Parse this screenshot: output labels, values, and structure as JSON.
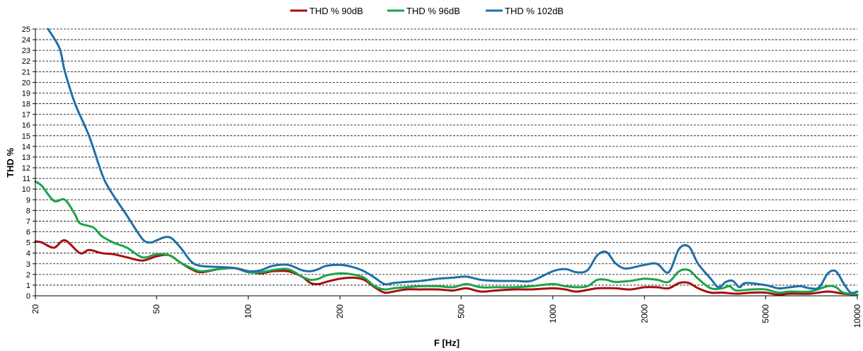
{
  "chart_data": {
    "type": "line",
    "title": "",
    "xlabel": "F [Hz]",
    "ylabel": "THD %",
    "xscale": "log",
    "xlim": [
      20,
      10000
    ],
    "ylim": [
      0,
      25
    ],
    "grid": "horizontal dashed",
    "legend_position": "top-center",
    "x_ticks": [
      20,
      50,
      100,
      200,
      500,
      1000,
      2000,
      5000,
      10000
    ],
    "y_ticks": [
      0,
      1,
      2,
      3,
      4,
      5,
      6,
      7,
      8,
      9,
      10,
      11,
      12,
      13,
      14,
      15,
      16,
      17,
      18,
      19,
      20,
      21,
      22,
      23,
      24,
      25
    ],
    "series": [
      {
        "name": "THD % 90dB",
        "color": "#a50f0f",
        "points": [
          [
            20,
            5.1
          ],
          [
            21,
            5.0
          ],
          [
            23,
            4.5
          ],
          [
            25,
            5.2
          ],
          [
            28,
            4.0
          ],
          [
            30,
            4.3
          ],
          [
            33,
            4.0
          ],
          [
            36,
            3.9
          ],
          [
            40,
            3.6
          ],
          [
            45,
            3.3
          ],
          [
            50,
            3.7
          ],
          [
            55,
            3.8
          ],
          [
            60,
            3.1
          ],
          [
            65,
            2.5
          ],
          [
            70,
            2.2
          ],
          [
            80,
            2.5
          ],
          [
            90,
            2.6
          ],
          [
            100,
            2.3
          ],
          [
            110,
            2.1
          ],
          [
            120,
            2.3
          ],
          [
            135,
            2.3
          ],
          [
            150,
            1.8
          ],
          [
            160,
            1.2
          ],
          [
            170,
            1.1
          ],
          [
            180,
            1.3
          ],
          [
            200,
            1.6
          ],
          [
            220,
            1.7
          ],
          [
            240,
            1.5
          ],
          [
            260,
            0.8
          ],
          [
            280,
            0.3
          ],
          [
            300,
            0.4
          ],
          [
            330,
            0.6
          ],
          [
            370,
            0.6
          ],
          [
            420,
            0.6
          ],
          [
            470,
            0.5
          ],
          [
            520,
            0.7
          ],
          [
            580,
            0.4
          ],
          [
            650,
            0.5
          ],
          [
            750,
            0.6
          ],
          [
            850,
            0.6
          ],
          [
            1000,
            0.7
          ],
          [
            1100,
            0.6
          ],
          [
            1200,
            0.4
          ],
          [
            1400,
            0.7
          ],
          [
            1600,
            0.7
          ],
          [
            1800,
            0.6
          ],
          [
            2000,
            0.8
          ],
          [
            2200,
            0.8
          ],
          [
            2400,
            0.7
          ],
          [
            2600,
            1.2
          ],
          [
            2800,
            1.2
          ],
          [
            3000,
            0.7
          ],
          [
            3300,
            0.3
          ],
          [
            3600,
            0.3
          ],
          [
            4000,
            0.2
          ],
          [
            4500,
            0.3
          ],
          [
            5000,
            0.3
          ],
          [
            5500,
            0.1
          ],
          [
            6000,
            0.2
          ],
          [
            7000,
            0.2
          ],
          [
            8000,
            0.4
          ],
          [
            9000,
            0.2
          ],
          [
            10000,
            0.1
          ]
        ]
      },
      {
        "name": "THD % 96dB",
        "color": "#1aa44a",
        "points": [
          [
            20,
            10.7
          ],
          [
            21,
            10.3
          ],
          [
            23,
            8.9
          ],
          [
            25,
            9.0
          ],
          [
            27,
            7.6
          ],
          [
            28,
            6.8
          ],
          [
            31,
            6.4
          ],
          [
            33,
            5.6
          ],
          [
            36,
            5.0
          ],
          [
            40,
            4.5
          ],
          [
            45,
            3.6
          ],
          [
            50,
            3.9
          ],
          [
            55,
            3.8
          ],
          [
            60,
            3.1
          ],
          [
            65,
            2.6
          ],
          [
            70,
            2.3
          ],
          [
            80,
            2.5
          ],
          [
            90,
            2.6
          ],
          [
            100,
            2.2
          ],
          [
            110,
            2.2
          ],
          [
            120,
            2.4
          ],
          [
            135,
            2.5
          ],
          [
            150,
            1.8
          ],
          [
            160,
            1.5
          ],
          [
            170,
            1.6
          ],
          [
            180,
            1.9
          ],
          [
            200,
            2.1
          ],
          [
            220,
            2.0
          ],
          [
            240,
            1.7
          ],
          [
            260,
            0.9
          ],
          [
            280,
            0.6
          ],
          [
            300,
            0.7
          ],
          [
            330,
            0.8
          ],
          [
            370,
            0.9
          ],
          [
            420,
            0.9
          ],
          [
            470,
            0.8
          ],
          [
            520,
            1.1
          ],
          [
            580,
            0.8
          ],
          [
            650,
            0.8
          ],
          [
            750,
            0.8
          ],
          [
            850,
            0.9
          ],
          [
            1000,
            1.1
          ],
          [
            1100,
            0.9
          ],
          [
            1200,
            0.8
          ],
          [
            1300,
            0.9
          ],
          [
            1400,
            1.5
          ],
          [
            1500,
            1.5
          ],
          [
            1600,
            1.3
          ],
          [
            1800,
            1.4
          ],
          [
            2000,
            1.6
          ],
          [
            2200,
            1.5
          ],
          [
            2400,
            1.3
          ],
          [
            2600,
            2.3
          ],
          [
            2800,
            2.4
          ],
          [
            3000,
            1.6
          ],
          [
            3300,
            0.7
          ],
          [
            3600,
            0.7
          ],
          [
            3800,
            0.9
          ],
          [
            4000,
            0.5
          ],
          [
            4500,
            0.6
          ],
          [
            5000,
            0.6
          ],
          [
            5500,
            0.3
          ],
          [
            6000,
            0.4
          ],
          [
            7000,
            0.4
          ],
          [
            8000,
            0.9
          ],
          [
            8500,
            0.8
          ],
          [
            9000,
            0.3
          ],
          [
            10000,
            0.1
          ]
        ]
      },
      {
        "name": "THD % 102dB",
        "color": "#1f6fa8",
        "points": [
          [
            22,
            25.0
          ],
          [
            24,
            23.2
          ],
          [
            25,
            21.0
          ],
          [
            27,
            18.0
          ],
          [
            30,
            15.0
          ],
          [
            33,
            11.5
          ],
          [
            35,
            10.0
          ],
          [
            40,
            7.5
          ],
          [
            45,
            5.3
          ],
          [
            48,
            5.0
          ],
          [
            50,
            5.2
          ],
          [
            55,
            5.5
          ],
          [
            60,
            4.5
          ],
          [
            65,
            3.2
          ],
          [
            70,
            2.8
          ],
          [
            80,
            2.7
          ],
          [
            90,
            2.6
          ],
          [
            100,
            2.3
          ],
          [
            110,
            2.4
          ],
          [
            120,
            2.8
          ],
          [
            135,
            2.9
          ],
          [
            150,
            2.4
          ],
          [
            160,
            2.3
          ],
          [
            170,
            2.5
          ],
          [
            180,
            2.8
          ],
          [
            200,
            2.9
          ],
          [
            220,
            2.7
          ],
          [
            240,
            2.3
          ],
          [
            260,
            1.7
          ],
          [
            280,
            1.1
          ],
          [
            300,
            1.2
          ],
          [
            330,
            1.3
          ],
          [
            370,
            1.4
          ],
          [
            420,
            1.6
          ],
          [
            470,
            1.7
          ],
          [
            520,
            1.8
          ],
          [
            580,
            1.5
          ],
          [
            650,
            1.4
          ],
          [
            750,
            1.4
          ],
          [
            850,
            1.4
          ],
          [
            1000,
            2.3
          ],
          [
            1100,
            2.5
          ],
          [
            1200,
            2.2
          ],
          [
            1300,
            2.4
          ],
          [
            1400,
            3.8
          ],
          [
            1500,
            4.1
          ],
          [
            1600,
            3.1
          ],
          [
            1700,
            2.6
          ],
          [
            1800,
            2.6
          ],
          [
            2000,
            2.9
          ],
          [
            2200,
            3.0
          ],
          [
            2400,
            2.2
          ],
          [
            2600,
            4.4
          ],
          [
            2800,
            4.6
          ],
          [
            3000,
            3.0
          ],
          [
            3300,
            1.6
          ],
          [
            3500,
            0.8
          ],
          [
            3700,
            1.3
          ],
          [
            3900,
            1.4
          ],
          [
            4100,
            0.8
          ],
          [
            4300,
            1.2
          ],
          [
            5000,
            1.0
          ],
          [
            5500,
            0.7
          ],
          [
            6000,
            0.8
          ],
          [
            6500,
            0.9
          ],
          [
            7000,
            0.7
          ],
          [
            7500,
            0.8
          ],
          [
            8000,
            2.1
          ],
          [
            8500,
            2.3
          ],
          [
            9000,
            1.2
          ],
          [
            9500,
            0.3
          ],
          [
            10000,
            0.4
          ]
        ]
      }
    ]
  }
}
